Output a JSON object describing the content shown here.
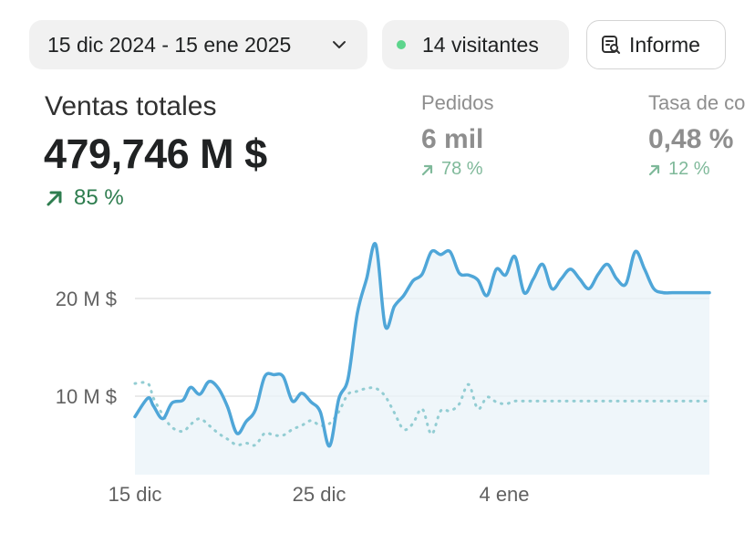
{
  "filters": {
    "date_range": "15 dic 2024 - 15 ene 2025",
    "visitors": "14 visitantes",
    "report_label": "Informe"
  },
  "kpis": {
    "total_sales": {
      "label": "Ventas totales",
      "value": "479,746 M $",
      "change": "85 %"
    },
    "orders": {
      "label": "Pedidos",
      "value": "6 mil",
      "change": "78 %"
    },
    "conversion": {
      "label": "Tasa de co",
      "value": "0,48 %",
      "change": "12 %"
    }
  },
  "colors": {
    "current_line": "#4fa6d8",
    "previous_line": "#93cdd3",
    "area_fill": "#eaf3f8",
    "gridline": "#e3e3e3",
    "positive": "#2e7d4f",
    "positive_muted": "#7fb99a",
    "live_dot": "#5dd58c"
  },
  "chart_data": {
    "type": "line",
    "x_tick_labels": [
      "15 dic",
      "25 dic",
      "4 ene"
    ],
    "y_tick_labels": [
      "10 M $",
      "20 M $"
    ],
    "y_ticks": [
      10,
      20
    ],
    "x": [
      0,
      0.7,
      1,
      1.5,
      2,
      2.6,
      3,
      3.5,
      4,
      4.5,
      5,
      5.5,
      6,
      6.5,
      7,
      7.5,
      8,
      8.5,
      9,
      9.5,
      10,
      10.5,
      11,
      11.5,
      12,
      12.5,
      13,
      13.5,
      14,
      14.5,
      15,
      15.5,
      16,
      16.5,
      17,
      17.5,
      18,
      18.5,
      19,
      19.5,
      20,
      20.5,
      21,
      21.5,
      22,
      22.5,
      23,
      23.5,
      24,
      24.5,
      25,
      25.5,
      26,
      26.5,
      27,
      27.5,
      28,
      28.5,
      29,
      29.5,
      30,
      30.5,
      31
    ],
    "ylim": [
      0,
      26
    ],
    "xlim": [
      0,
      31
    ],
    "grid": true,
    "series": [
      {
        "values": [
          7.9,
          9.8,
          9.0,
          7.7,
          9.3,
          9.6,
          10.9,
          10.2,
          11.5,
          10.8,
          8.9,
          6.2,
          7.4,
          8.6,
          12.0,
          12.2,
          12.0,
          9.5,
          10.3,
          9.4,
          8.4,
          4.9,
          9.7,
          11.8,
          18.5,
          22.0,
          25.5,
          17.2,
          19.2,
          20.3,
          21.8,
          22.5,
          24.8,
          24.5,
          24.8,
          22.6,
          22.4,
          21.9,
          20.3,
          23.0,
          22.4,
          24.3,
          20.6,
          22.0,
          23.5,
          21.0,
          22.0,
          23.0,
          22.0,
          21.0,
          22.5,
          23.5,
          22.0,
          21.5,
          24.8,
          23.0,
          21.0,
          20.6,
          20.6,
          20.6,
          20.6,
          20.6,
          20.6
        ]
      },
      {
        "values": [
          11.3,
          11.3,
          9.8,
          8.1,
          6.8,
          6.4,
          7.1,
          7.7,
          7.0,
          6.2,
          5.6,
          5.0,
          5.2,
          5.0,
          6.2,
          6.0,
          6.0,
          6.6,
          7.0,
          7.5,
          7.0,
          7.2,
          8.4,
          10.2,
          10.5,
          10.8,
          10.8,
          10.0,
          8.3,
          6.6,
          7.2,
          8.7,
          6.1,
          8.5,
          8.5,
          9.2,
          11.2,
          8.7,
          9.9,
          9.4,
          9.2,
          9.5,
          9.5,
          9.5,
          9.5,
          9.5,
          9.5,
          9.5,
          9.5,
          9.5,
          9.5,
          9.5,
          9.5,
          9.5,
          9.5,
          9.5,
          9.5,
          9.5,
          9.5,
          9.5,
          9.5,
          9.5,
          9.5
        ]
      }
    ]
  }
}
